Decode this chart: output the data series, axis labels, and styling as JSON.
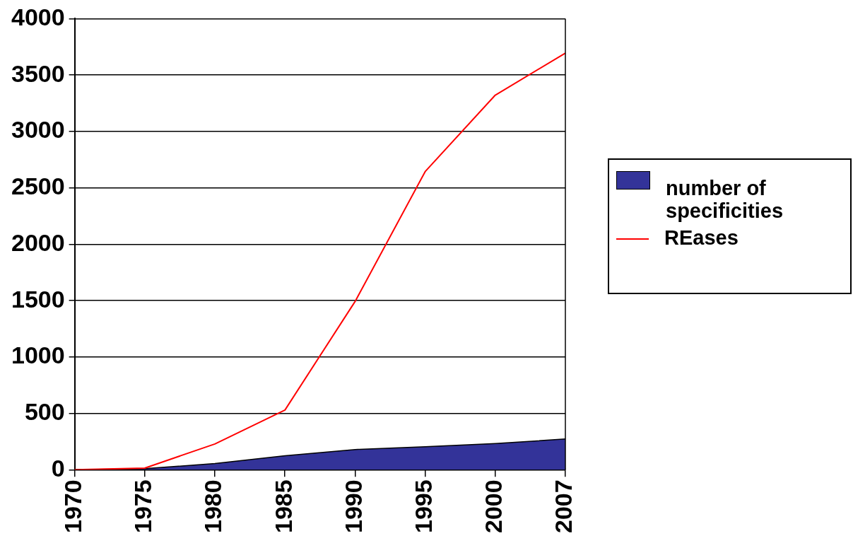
{
  "chart_data": {
    "type": "line",
    "categories": [
      "1970",
      "1975",
      "1980",
      "1985",
      "1990",
      "1995",
      "2000",
      "2007"
    ],
    "series": [
      {
        "name": "number of specificities",
        "type": "area",
        "color": "#333399",
        "values": [
          0,
          10,
          55,
          125,
          180,
          204,
          233,
          273
        ]
      },
      {
        "name": "REases",
        "type": "line",
        "color": "#ff0000",
        "values": [
          0,
          15,
          229,
          530,
          1492,
          2644,
          3322,
          3695
        ]
      }
    ],
    "ylim": [
      0,
      4000
    ],
    "yticks": [
      0,
      500,
      1000,
      1500,
      2000,
      2500,
      3000,
      3500,
      4000
    ],
    "grid": "y",
    "legend": "right",
    "marker": "none"
  }
}
